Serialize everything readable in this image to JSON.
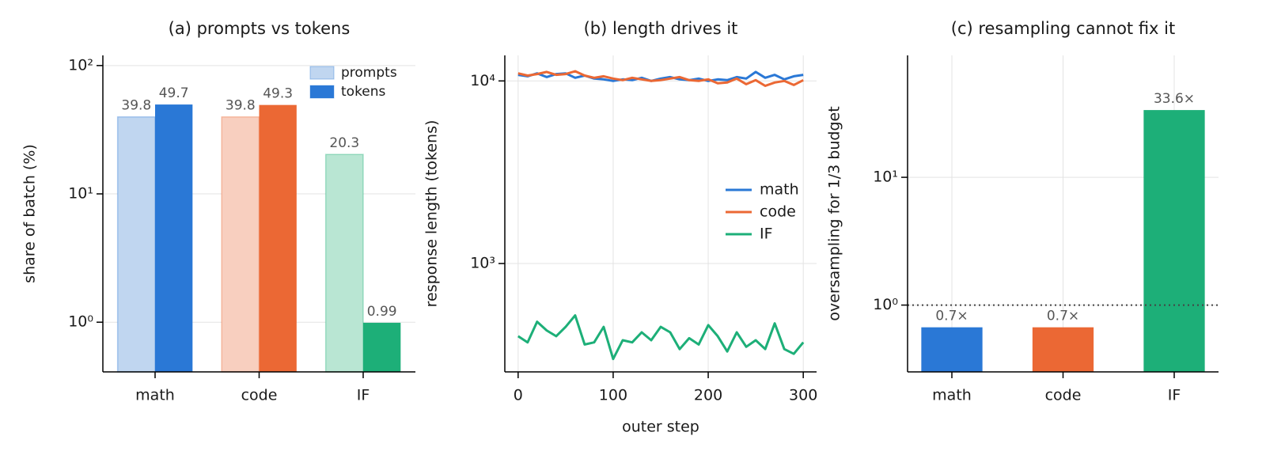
{
  "chart_data": [
    {
      "type": "bar",
      "title": "(a) prompts vs tokens",
      "ylabel": "share of batch (%)",
      "categories": [
        "math",
        "code",
        "IF"
      ],
      "series": [
        {
          "name": "prompts",
          "color": [
            "#c0d6f0",
            "#f8cfbf",
            "#b9e6d3"
          ],
          "values": [
            39.8,
            39.8,
            20.3
          ]
        },
        {
          "name": "tokens",
          "color": [
            "#2a78d6",
            "#eb6834",
            "#1daf78"
          ],
          "values": [
            49.7,
            49.3,
            0.99
          ]
        }
      ],
      "log_y": true,
      "ylim": [
        0.41,
        120
      ],
      "yticks": [
        {
          "value": 1,
          "label": "10⁰"
        },
        {
          "value": 10,
          "label": "10¹"
        },
        {
          "value": 100,
          "label": "10²"
        }
      ],
      "grid": "y",
      "legend": "upper right"
    },
    {
      "type": "line",
      "title": "(b) length drives it",
      "xlabel": "outer step",
      "ylabel": "response length (tokens)",
      "x": [
        0,
        10,
        20,
        30,
        40,
        50,
        60,
        70,
        80,
        90,
        100,
        110,
        120,
        130,
        140,
        150,
        160,
        170,
        180,
        190,
        200,
        210,
        220,
        230,
        240,
        250,
        260,
        270,
        280,
        290,
        300
      ],
      "series": [
        {
          "name": "math",
          "color": "#2a78d6",
          "values": [
            10800,
            10600,
            11000,
            10500,
            10900,
            11000,
            10400,
            10700,
            10300,
            10200,
            10000,
            10200,
            10100,
            10400,
            10000,
            10300,
            10500,
            10200,
            10100,
            10300,
            10000,
            10200,
            10100,
            10500,
            10300,
            11200,
            10400,
            10800,
            10200,
            10600,
            10800
          ]
        },
        {
          "name": "code",
          "color": "#eb6834",
          "values": [
            11000,
            10700,
            10900,
            11200,
            10800,
            10900,
            11300,
            10700,
            10400,
            10600,
            10300,
            10100,
            10400,
            10200,
            10000,
            10100,
            10300,
            10500,
            10100,
            10000,
            10200,
            9700,
            9800,
            10300,
            9600,
            10100,
            9400,
            9800,
            10000,
            9500,
            10100
          ]
        },
        {
          "name": "IF",
          "color": "#1daf78",
          "values": [
            400,
            370,
            480,
            430,
            400,
            450,
            520,
            360,
            370,
            450,
            300,
            380,
            370,
            420,
            380,
            450,
            420,
            340,
            390,
            360,
            460,
            400,
            330,
            420,
            350,
            380,
            340,
            470,
            340,
            320,
            370
          ]
        }
      ],
      "log_y": true,
      "ylim": [
        255,
        13800
      ],
      "xlim": [
        -14,
        314
      ],
      "yticks": [
        {
          "value": 1000,
          "label": "10³"
        },
        {
          "value": 10000,
          "label": "10⁴"
        }
      ],
      "xticks": [
        0,
        100,
        200,
        300
      ],
      "grid": "both",
      "legend": "center right"
    },
    {
      "type": "bar",
      "title": "(c) resampling cannot fix it",
      "ylabel": "oversampling for 1/3 budget",
      "categories": [
        "math",
        "code",
        "IF"
      ],
      "series": [
        {
          "color": [
            "#2a78d6",
            "#eb6834",
            "#1daf78"
          ],
          "values": [
            0.67,
            0.67,
            33.6
          ],
          "value_labels": [
            "0.7×",
            "0.7×",
            "33.6×"
          ]
        }
      ],
      "log_y": true,
      "ylim": [
        0.3,
        90
      ],
      "yticks": [
        {
          "value": 1,
          "label": "10⁰"
        },
        {
          "value": 10,
          "label": "10¹"
        }
      ],
      "reference_line": 1,
      "grid": "both"
    }
  ]
}
